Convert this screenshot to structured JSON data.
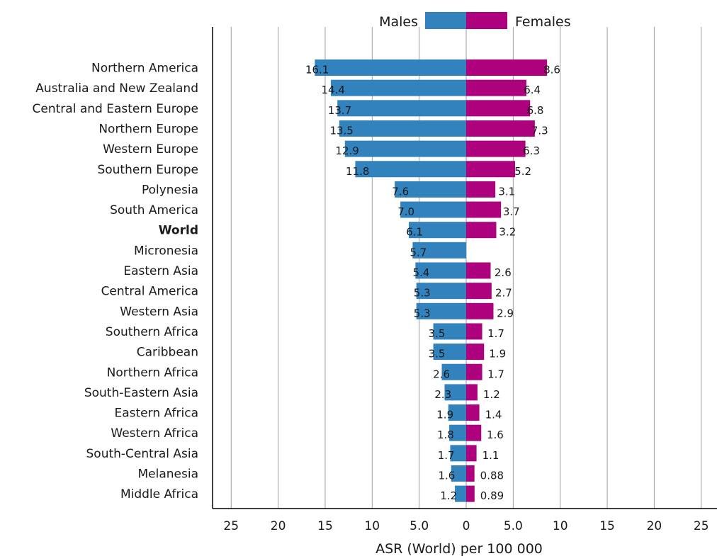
{
  "chart_data": {
    "type": "bar",
    "orientation": "horizontal",
    "layout": "population-pyramid",
    "xlabel": "ASR (World) per 100 000",
    "xlim": [
      -25,
      25
    ],
    "x_ticks": [
      {
        "value": -25,
        "label": "25"
      },
      {
        "value": -20,
        "label": "20"
      },
      {
        "value": -15,
        "label": "15"
      },
      {
        "value": -10,
        "label": "10"
      },
      {
        "value": -5,
        "label": "5.0"
      },
      {
        "value": 0,
        "label": "0"
      },
      {
        "value": 5,
        "label": "5.0"
      },
      {
        "value": 10,
        "label": "10"
      },
      {
        "value": 15,
        "label": "15"
      },
      {
        "value": 20,
        "label": "20"
      },
      {
        "value": 25,
        "label": "25"
      }
    ],
    "grid": true,
    "legend_position": "top-center",
    "categories": [
      "Northern America",
      "Australia and New Zealand",
      "Central and Eastern Europe",
      "Northern Europe",
      "Western Europe",
      "Southern Europe",
      "Polynesia",
      "South America",
      "World",
      "Micronesia",
      "Eastern Asia",
      "Central America",
      "Western Asia",
      "Southern Africa",
      "Caribbean",
      "Northern Africa",
      "South-Eastern Asia",
      "Eastern Africa",
      "Western Africa",
      "South-Central Asia",
      "Melanesia",
      "Middle Africa"
    ],
    "highlight_category": "World",
    "series": [
      {
        "name": "Males",
        "side": "left",
        "color": "#3182bd",
        "values": [
          16.1,
          14.4,
          13.7,
          13.5,
          12.9,
          11.8,
          7.6,
          7.0,
          6.1,
          5.7,
          5.4,
          5.3,
          5.3,
          3.5,
          3.5,
          2.6,
          2.3,
          1.9,
          1.8,
          1.7,
          1.6,
          1.2
        ],
        "labels": [
          "16.1",
          "14.4",
          "13.7",
          "13.5",
          "12.9",
          "11.8",
          "7.6",
          "7.0",
          "6.1",
          "5.7",
          "5.4",
          "5.3",
          "5.3",
          "3.5",
          "3.5",
          "2.6",
          "2.3",
          "1.9",
          "1.8",
          "1.7",
          "1.6",
          "1.2"
        ]
      },
      {
        "name": "Females",
        "side": "right",
        "color": "#ae017e",
        "values": [
          8.6,
          6.4,
          6.8,
          7.3,
          6.3,
          5.2,
          3.1,
          3.7,
          3.2,
          null,
          2.6,
          2.7,
          2.9,
          1.7,
          1.9,
          1.7,
          1.2,
          1.4,
          1.6,
          1.1,
          0.88,
          0.89
        ],
        "labels": [
          "8.6",
          "6.4",
          "6.8",
          "7.3",
          "6.3",
          "5.2",
          "3.1",
          "3.7",
          "3.2",
          "",
          "2.6",
          "2.7",
          "2.9",
          "1.7",
          "1.9",
          "1.7",
          "1.2",
          "1.4",
          "1.6",
          "1.1",
          "0.88",
          "0.89"
        ]
      }
    ]
  }
}
